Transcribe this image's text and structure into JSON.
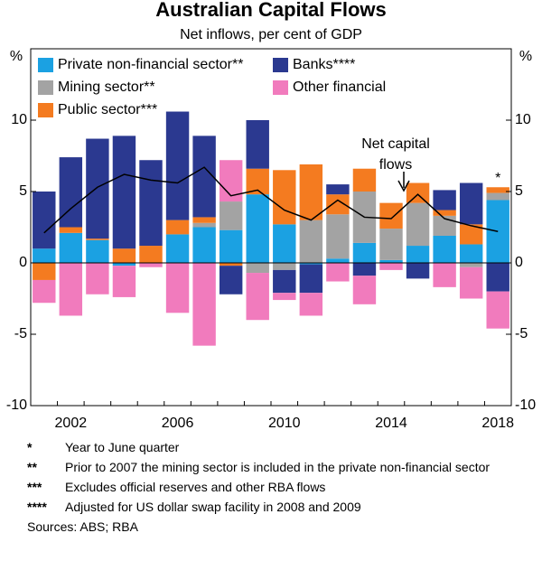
{
  "chart_data": {
    "type": "stacked-bar-line",
    "title": "Australian Capital Flows",
    "subtitle": "Net inflows, per cent of GDP",
    "y_unit": "%",
    "y2_unit": "%",
    "categories": [
      null,
      "2002",
      null,
      null,
      null,
      "2006",
      null,
      null,
      null,
      "2010",
      null,
      null,
      null,
      "2014",
      null,
      null,
      null,
      "2018"
    ],
    "series": [
      {
        "name": "Private non-financial sector**",
        "color": "#1ba1e2",
        "values": [
          1.0,
          2.1,
          1.6,
          -0.2,
          0,
          2.0,
          2.5,
          2.3,
          4.8,
          2.7,
          -0.1,
          0.3,
          1.4,
          0.2,
          1.2,
          1.9,
          1.3,
          4.4
        ]
      },
      {
        "name": "Mining sector**",
        "color": "#a3a3a3",
        "values": [
          0,
          0,
          0,
          0,
          0,
          0,
          0.3,
          2.0,
          -0.7,
          -0.5,
          3.0,
          3.1,
          3.6,
          2.2,
          3.0,
          1.4,
          -0.3,
          0.5
        ]
      },
      {
        "name": "Public sector***",
        "color": "#f47b20",
        "values": [
          -1.2,
          0.4,
          0.1,
          1.0,
          1.2,
          1.0,
          0.4,
          -0.2,
          1.8,
          3.8,
          3.9,
          1.4,
          1.6,
          1.8,
          1.4,
          0.4,
          1.4,
          0.4
        ]
      },
      {
        "name": "Banks****",
        "color": "#2b3990",
        "values": [
          4.0,
          4.9,
          7.0,
          7.9,
          6.0,
          7.6,
          5.7,
          -2.0,
          3.4,
          -1.6,
          -2.0,
          0.7,
          -0.9,
          0,
          -1.1,
          1.4,
          2.9,
          -2.0
        ]
      },
      {
        "name": "Other financial",
        "color": "#f17bbd",
        "values": [
          -1.6,
          -3.7,
          -2.2,
          -2.2,
          -0.3,
          -3.5,
          -5.8,
          2.9,
          -3.3,
          -0.5,
          -1.6,
          -1.3,
          -2.0,
          -0.5,
          0,
          -1.7,
          -2.2,
          -2.6
        ]
      },
      {
        "name": "Net capital flows",
        "type": "line",
        "color": "#000000",
        "values": [
          2.1,
          3.8,
          5.3,
          6.2,
          5.8,
          5.6,
          6.7,
          4.7,
          5.1,
          3.7,
          3.0,
          4.4,
          3.2,
          3.1,
          4.8,
          3.1,
          2.6,
          2.2
        ]
      }
    ],
    "line_label": [
      "Net capital",
      "flows"
    ],
    "last_bar_marker": "*",
    "ylim": [
      -10,
      15
    ],
    "yticks": [
      -10,
      -5,
      0,
      5,
      10
    ],
    "grid": false,
    "footnotes": [
      {
        "marker": "*",
        "text": "Year to June quarter"
      },
      {
        "marker": "**",
        "text": "Prior to 2007 the mining sector is included in the private non-financial sector"
      },
      {
        "marker": "***",
        "text": "Excludes official reserves and other RBA flows"
      },
      {
        "marker": "****",
        "text": "Adjusted for US dollar swap facility in 2008 and 2009"
      }
    ],
    "source": "Sources: ABS; RBA"
  }
}
